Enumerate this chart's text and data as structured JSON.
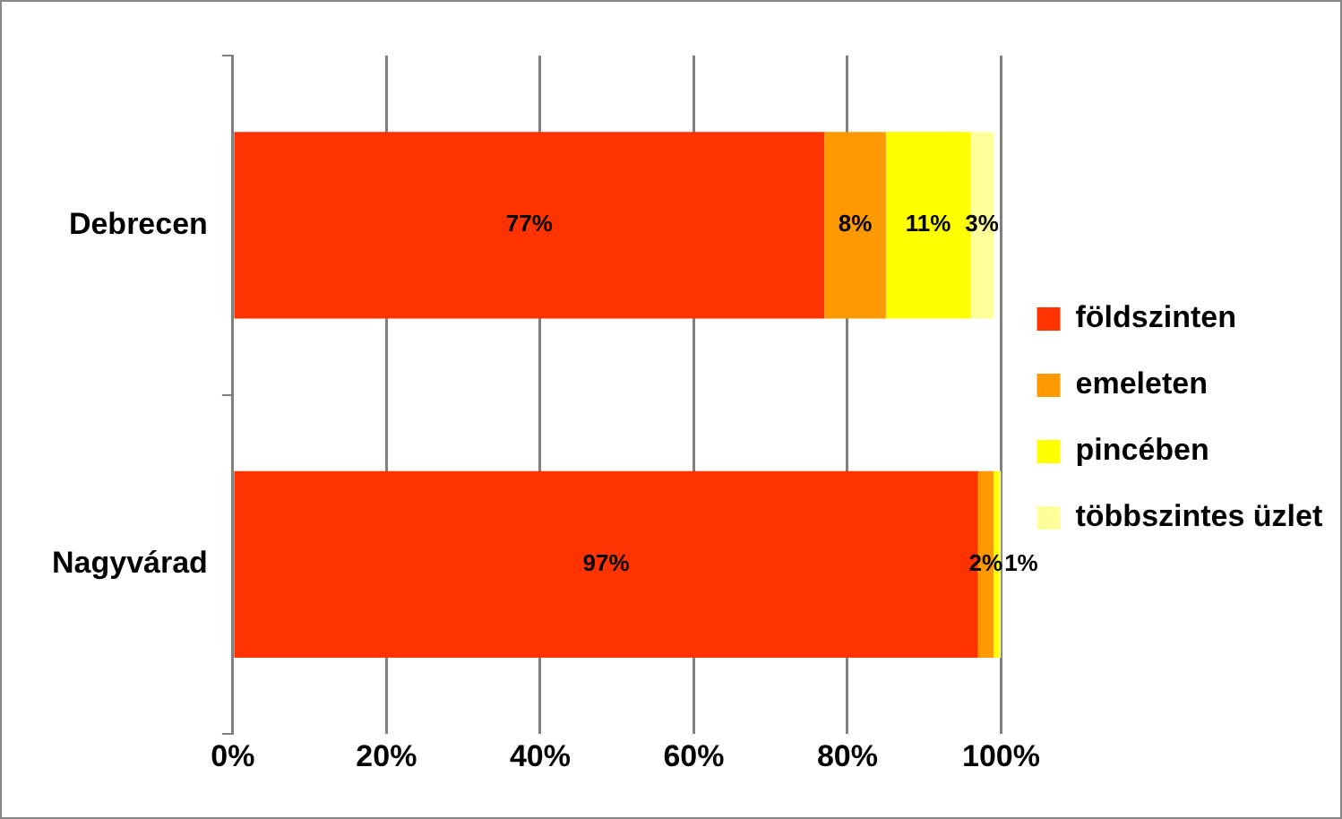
{
  "chart_data": {
    "type": "bar",
    "orientation": "horizontal",
    "stacked": true,
    "categories": [
      "Debrecen",
      "Nagyvárad"
    ],
    "series": [
      {
        "name": "földszinten",
        "color": "#ff3300",
        "values": [
          77,
          97
        ],
        "value_labels": [
          "77%",
          "97%"
        ]
      },
      {
        "name": "emeleten",
        "color": "#ff9900",
        "values": [
          8,
          2
        ],
        "value_labels": [
          "8%",
          "2%"
        ]
      },
      {
        "name": "pincében",
        "color": "#ffff00",
        "values": [
          11,
          0.7
        ],
        "value_labels": [
          "11%",
          "1%"
        ]
      },
      {
        "name": "többszintes üzlet",
        "color": "#ffff99",
        "values": [
          3,
          0.3
        ],
        "value_labels": [
          "3%",
          null
        ]
      }
    ],
    "xlim": [
      0,
      100
    ],
    "xticks": [
      {
        "value": 0,
        "label": "0%"
      },
      {
        "value": 20,
        "label": "20%"
      },
      {
        "value": 40,
        "label": "40%"
      },
      {
        "value": 60,
        "label": "60%"
      },
      {
        "value": 80,
        "label": "80%"
      },
      {
        "value": 100,
        "label": "100%"
      }
    ],
    "grid": "x",
    "legend": "right"
  }
}
